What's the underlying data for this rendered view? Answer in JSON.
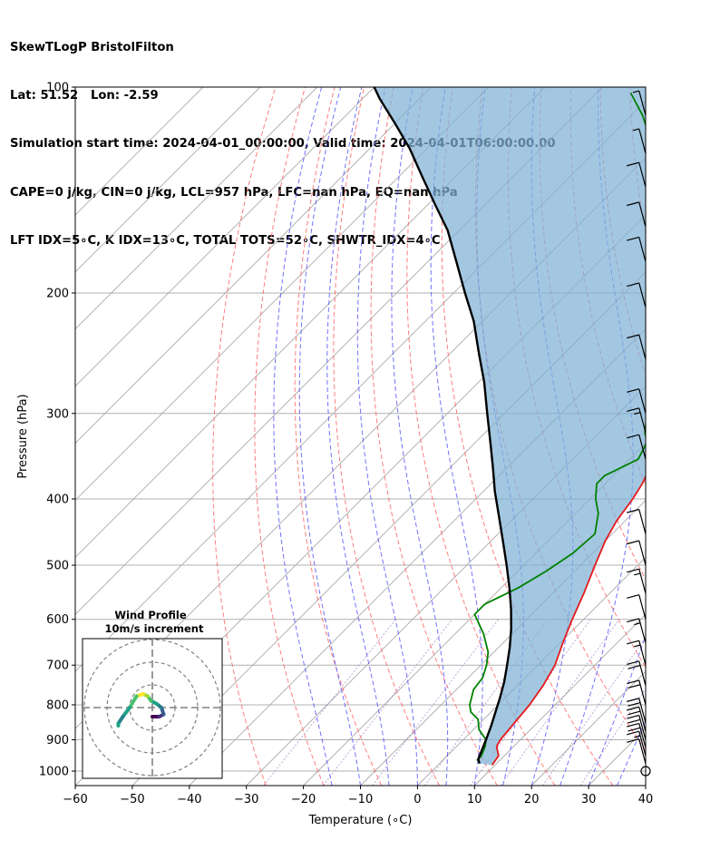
{
  "header": {
    "line1": "SkewTLogP BristolFilton",
    "line2": "Lat: 51.52   Lon: -2.59",
    "line3": "Simulation start time: 2024-04-01_00:00:00, Valid time: 2024-04-01T06:00:00.00",
    "line4": "CAPE=0 j/kg, CIN=0 j/kg, LCL=957 hPa, LFC=nan hPa, EQ=nan hPa",
    "line5": "LFT IDX=5∘C, K IDX=13∘C, TOTAL TOTS=52∘C, SHWTR_IDX=4∘C"
  },
  "chart_data": {
    "type": "line",
    "title": "SkewTLogP BristolFilton",
    "xlabel": "Temperature (∘C)",
    "ylabel": "Pressure (hPa)",
    "xlim": [
      -60,
      40
    ],
    "ylim": [
      1050,
      100
    ],
    "y_scale": "log",
    "grid": true,
    "x_ticks": [
      -60,
      -50,
      -40,
      -30,
      -20,
      -10,
      0,
      10,
      20,
      30,
      40
    ],
    "y_ticks": [
      100,
      200,
      300,
      400,
      500,
      600,
      700,
      800,
      900,
      1000
    ],
    "colors": {
      "temperature": "#e41a1c",
      "dewpoint": "#008000",
      "parcel": "#000000",
      "cape_fill": "#7fb2d5",
      "dry_adiabat": "#ff6666",
      "moist_adiabat": "#4d4dff",
      "mixing_ratio": "#9467bd",
      "isotherm": "#aaaaaa"
    },
    "series": [
      {
        "id": "temperature",
        "points": [
          [
            9.5,
            980
          ],
          [
            9.0,
            950
          ],
          [
            7.0,
            920
          ],
          [
            6.5,
            900
          ],
          [
            6.0,
            850
          ],
          [
            5.5,
            800
          ],
          [
            4.5,
            750
          ],
          [
            3.0,
            700
          ],
          [
            0.5,
            650
          ],
          [
            -2.0,
            600
          ],
          [
            -4.5,
            550
          ],
          [
            -7.5,
            500
          ],
          [
            -10.0,
            460
          ],
          [
            -11.5,
            430
          ],
          [
            -12.5,
            400
          ],
          [
            -13.5,
            380
          ],
          [
            -15.0,
            360
          ],
          [
            -16.0,
            345
          ],
          [
            -17.0,
            330
          ],
          [
            -17.5,
            315
          ],
          [
            -16.5,
            300
          ],
          [
            -15.5,
            290
          ],
          [
            -15.0,
            280
          ],
          [
            -16.0,
            265
          ],
          [
            -18.5,
            248
          ],
          [
            -22.0,
            235
          ],
          [
            -25.0,
            225
          ],
          [
            -28.5,
            215
          ],
          [
            -31.5,
            205
          ],
          [
            -34.5,
            195
          ],
          [
            -37.5,
            185
          ],
          [
            -41.0,
            175
          ],
          [
            -44.0,
            165
          ],
          [
            -47.5,
            155
          ],
          [
            -50.5,
            145
          ],
          [
            -54.0,
            135
          ],
          [
            -56.5,
            125
          ],
          [
            -59.0,
            115
          ],
          [
            -61.5,
            108
          ],
          [
            -63.5,
            100
          ]
        ]
      },
      {
        "id": "dewpoint",
        "points": [
          [
            6.0,
            965
          ],
          [
            6.0,
            950
          ],
          [
            5.0,
            920
          ],
          [
            4.0,
            900
          ],
          [
            1.0,
            870
          ],
          [
            -1.0,
            840
          ],
          [
            -3.5,
            820
          ],
          [
            -5.0,
            800
          ],
          [
            -7.0,
            760
          ],
          [
            -7.5,
            730
          ],
          [
            -9.0,
            700
          ],
          [
            -11.0,
            670
          ],
          [
            -15.0,
            630
          ],
          [
            -20.0,
            590
          ],
          [
            -20.0,
            570
          ],
          [
            -17.0,
            540
          ],
          [
            -15.0,
            510
          ],
          [
            -13.5,
            480
          ],
          [
            -13.0,
            450
          ],
          [
            -16.0,
            420
          ],
          [
            -19.0,
            400
          ],
          [
            -21.5,
            380
          ],
          [
            -21.5,
            370
          ],
          [
            -18.5,
            350
          ],
          [
            -20.0,
            330
          ],
          [
            -22.0,
            320
          ],
          [
            -25.0,
            300
          ],
          [
            -28.0,
            280
          ],
          [
            -31.5,
            260
          ],
          [
            -34.0,
            240
          ],
          [
            -35.0,
            220
          ],
          [
            -36.5,
            200
          ],
          [
            -39.0,
            190
          ],
          [
            -44.0,
            180
          ],
          [
            -47.0,
            170
          ],
          [
            -51.5,
            160
          ],
          [
            -57.0,
            150
          ],
          [
            -62.0,
            140
          ],
          [
            -67.0,
            130
          ],
          [
            -72.0,
            120
          ],
          [
            -78.0,
            110
          ],
          [
            -84.0,
            102
          ]
        ]
      },
      {
        "id": "parcel",
        "points": [
          [
            7.0,
            975
          ],
          [
            6.0,
            960
          ],
          [
            5.0,
            930
          ],
          [
            4.0,
            900
          ],
          [
            2.5,
            860
          ],
          [
            0.8,
            820
          ],
          [
            -1.0,
            780
          ],
          [
            -3.0,
            740
          ],
          [
            -5.4,
            700
          ],
          [
            -8.0,
            660
          ],
          [
            -11.0,
            620
          ],
          [
            -14.5,
            580
          ],
          [
            -18.5,
            540
          ],
          [
            -23.0,
            500
          ],
          [
            -28.0,
            460
          ],
          [
            -33.5,
            420
          ],
          [
            -38.0,
            390
          ],
          [
            -42.5,
            360
          ],
          [
            -47.5,
            330
          ],
          [
            -53.0,
            300
          ],
          [
            -59.0,
            270
          ],
          [
            -65.0,
            245
          ],
          [
            -71.5,
            220
          ],
          [
            -78.0,
            200
          ],
          [
            -85.0,
            180
          ],
          [
            -92.0,
            162
          ],
          [
            -99.0,
            148
          ],
          [
            -106.0,
            135
          ],
          [
            -113.0,
            123
          ],
          [
            -120.0,
            113
          ],
          [
            -127.0,
            104
          ],
          [
            -130.0,
            100
          ]
        ]
      }
    ],
    "wind_barbs": [
      {
        "p": 1000,
        "speed_kt": 0
      },
      {
        "p": 975,
        "speed_kt": 10
      },
      {
        "p": 950,
        "speed_kt": 15
      },
      {
        "p": 925,
        "speed_kt": 20
      },
      {
        "p": 900,
        "speed_kt": 20
      },
      {
        "p": 875,
        "speed_kt": 20
      },
      {
        "p": 850,
        "speed_kt": 20
      },
      {
        "p": 800,
        "speed_kt": 20
      },
      {
        "p": 750,
        "speed_kt": 20
      },
      {
        "p": 700,
        "speed_kt": 15
      },
      {
        "p": 650,
        "speed_kt": 15
      },
      {
        "p": 600,
        "speed_kt": 10
      },
      {
        "p": 550,
        "speed_kt": 15
      },
      {
        "p": 500,
        "speed_kt": 10
      },
      {
        "p": 450,
        "speed_kt": 10
      },
      {
        "p": 350,
        "speed_kt": 10
      },
      {
        "p": 320,
        "speed_kt": 15
      },
      {
        "p": 300,
        "speed_kt": 10
      },
      {
        "p": 250,
        "speed_kt": 10
      },
      {
        "p": 210,
        "speed_kt": 10
      },
      {
        "p": 180,
        "speed_kt": 10
      },
      {
        "p": 160,
        "speed_kt": 10
      },
      {
        "p": 140,
        "speed_kt": 10
      },
      {
        "p": 125,
        "speed_kt": 5
      },
      {
        "p": 110,
        "speed_kt": 5
      }
    ],
    "inset": {
      "title_line1": "Wind Profile",
      "title_line2": "10m/s increment",
      "hodograph_points": [
        [
          0,
          -2
        ],
        [
          1.5,
          -2
        ],
        [
          2.5,
          -1.5
        ],
        [
          2,
          0
        ],
        [
          1,
          0.8
        ],
        [
          -0.3,
          1.5
        ],
        [
          -1,
          2.5
        ],
        [
          -2,
          3
        ],
        [
          -3.5,
          2.5
        ],
        [
          -5,
          0
        ],
        [
          -6.5,
          -2
        ],
        [
          -7.5,
          -3.5
        ],
        [
          -7.5,
          -4
        ]
      ]
    }
  }
}
